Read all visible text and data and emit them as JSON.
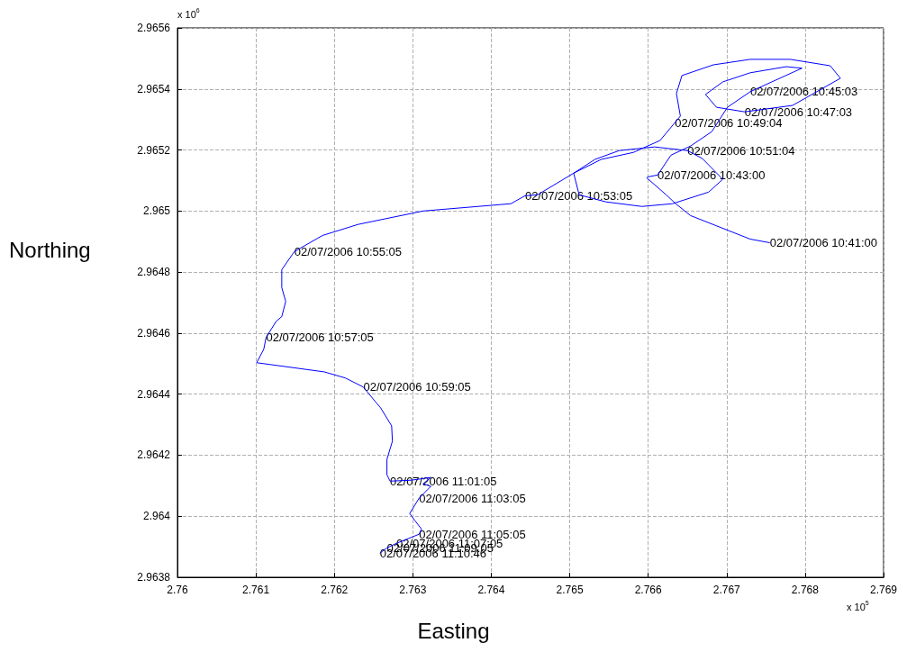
{
  "chart_data": {
    "type": "line",
    "xlabel": "Easting",
    "ylabel": "Northing",
    "x": [
      2.76755,
      2.7673,
      2.76654,
      2.76635,
      2.76623,
      2.76598,
      2.766,
      2.76612,
      2.76629,
      2.76654,
      2.76681,
      2.76701,
      2.7673,
      2.76796,
      2.76776,
      2.7673,
      2.76695,
      2.76673,
      2.76687,
      2.76723,
      2.76784,
      2.76845,
      2.76832,
      2.76781,
      2.7673,
      2.76683,
      2.76643,
      2.76636,
      2.76641,
      2.76615,
      2.76581,
      2.7654,
      2.76505,
      2.76512,
      2.76546,
      2.76592,
      2.76631,
      2.76677,
      2.76695,
      2.76669,
      2.7665,
      2.76608,
      2.76563,
      2.76532,
      2.76505,
      2.76459,
      2.76443,
      2.76425,
      2.76313,
      2.7623,
      2.76185,
      2.76149,
      2.76133,
      2.76133,
      2.76138,
      2.76133,
      2.76126,
      2.76113,
      2.7611,
      2.76101,
      2.76187,
      2.76214,
      2.76237,
      2.76253,
      2.76259,
      2.76273,
      2.76274,
      2.76267,
      2.76267,
      2.76271,
      2.76298,
      2.76323,
      2.76313,
      2.76323,
      2.76308,
      2.76296,
      2.76302,
      2.76311,
      2.76308,
      2.76279,
      2.76267,
      2.76258
    ],
    "series": [
      {
        "color": "#0000ff",
        "values": [
          2.964896,
          2.964908,
          2.964985,
          2.965024,
          2.965053,
          2.965109,
          2.965112,
          2.965118,
          2.965183,
          2.965213,
          2.96526,
          2.96534,
          2.965391,
          2.965468,
          2.965473,
          2.965453,
          2.965423,
          2.965382,
          2.96534,
          2.965325,
          2.965346,
          2.965435,
          2.965476,
          2.965497,
          2.965497,
          2.965479,
          2.965444,
          2.965385,
          2.965311,
          2.965231,
          2.965192,
          2.965169,
          2.965124,
          2.965053,
          2.96503,
          2.965015,
          2.965024,
          2.965062,
          2.965104,
          2.965172,
          2.965198,
          2.96521,
          2.965198,
          2.965169,
          2.965124,
          2.965053,
          2.96505,
          2.965024,
          2.965,
          2.964956,
          2.96492,
          2.964867,
          2.964808,
          2.964749,
          2.964704,
          2.964654,
          2.964639,
          2.964586,
          2.964547,
          2.964503,
          2.964473,
          2.964453,
          2.964423,
          2.964373,
          2.964355,
          2.964296,
          2.964246,
          2.964186,
          2.964136,
          2.964115,
          2.964118,
          2.964127,
          2.964106,
          2.964098,
          2.964059,
          2.964009,
          2.963988,
          2.963958,
          2.963941,
          2.963911,
          2.963896,
          2.963879
        ]
      }
    ],
    "xlim": [
      2.76,
      2.769
    ],
    "xticks": [
      2.76,
      2.761,
      2.762,
      2.763,
      2.764,
      2.765,
      2.766,
      2.767,
      2.768,
      2.769
    ],
    "ylim": [
      2.9638,
      2.9656
    ],
    "yticks": [
      2.9638,
      2.964,
      2.9642,
      2.9644,
      2.9646,
      2.9648,
      2.965,
      2.9652,
      2.9654,
      2.9656
    ],
    "grid": true,
    "marker": "none",
    "line_style": "solid",
    "annotations": [
      {
        "text": "02/07/2006 10:41:00",
        "x": 2.76755,
        "y": 2.964896
      },
      {
        "text": "02/07/2006 10:43:00",
        "x": 2.76612,
        "y": 2.965118
      },
      {
        "text": "02/07/2006 10:45:03",
        "x": 2.7673,
        "y": 2.965391
      },
      {
        "text": "02/07/2006 10:47:03",
        "x": 2.76723,
        "y": 2.965325
      },
      {
        "text": "02/07/2006 10:49:04",
        "x": 2.76634,
        "y": 2.96529
      },
      {
        "text": "02/07/2006 10:51:04",
        "x": 2.7665,
        "y": 2.965198
      },
      {
        "text": "02/07/2006 10:53:05",
        "x": 2.76443,
        "y": 2.96505
      },
      {
        "text": "02/07/2006 10:55:05",
        "x": 2.76149,
        "y": 2.964867
      },
      {
        "text": "02/07/2006 10:57:05",
        "x": 2.76113,
        "y": 2.964586
      },
      {
        "text": "02/07/2006 10:59:05",
        "x": 2.76237,
        "y": 2.964423
      },
      {
        "text": "02/07/2006 11:01:05",
        "x": 2.76271,
        "y": 2.964115
      },
      {
        "text": "02/07/2006 11:03:05",
        "x": 2.76308,
        "y": 2.964059
      },
      {
        "text": "02/07/2006 11:05:05",
        "x": 2.76308,
        "y": 2.963941
      },
      {
        "text": "02/07/2006 11:07:05",
        "x": 2.76279,
        "y": 2.963911
      },
      {
        "text": "02/07/2006 11:09:05",
        "x": 2.76267,
        "y": 2.963896
      },
      {
        "text": "02/07/2006 11:10:46",
        "x": 2.76258,
        "y": 2.963879
      },
      "x 10$^{6}$",
      "x 10$^{5}$"
    ]
  }
}
